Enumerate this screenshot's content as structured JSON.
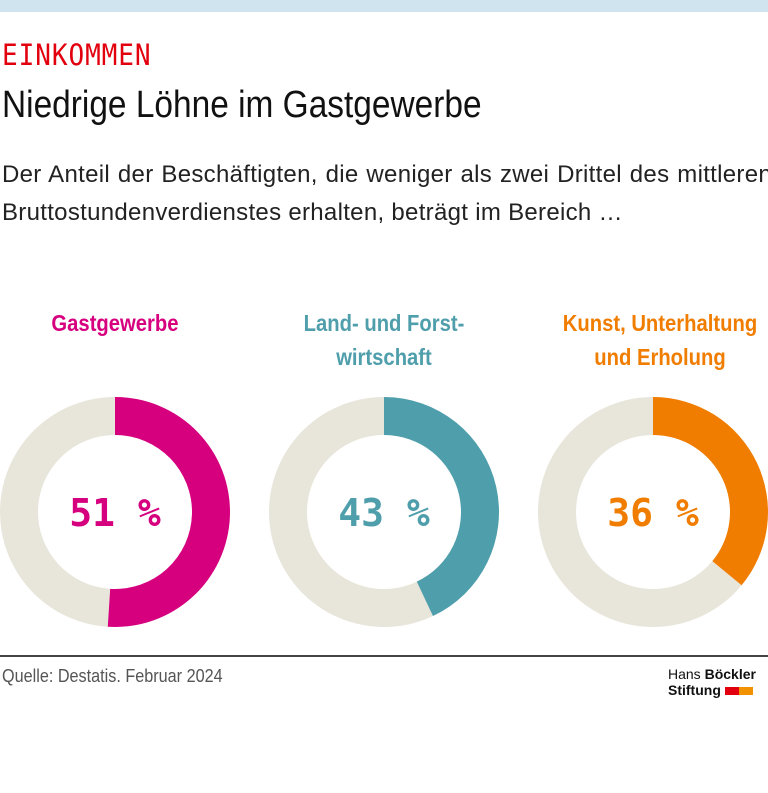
{
  "kicker": "EINKOMMEN",
  "title": "Niedrige Löhne im Gastgewerbe",
  "subtitle": "Der Anteil der Beschäftigten, die weniger als zwei Drittel des mittleren Bruttostundenverdienstes erhalten, beträgt im Bereich …",
  "source": "Quelle: Destatis. Februar 2024",
  "logo": {
    "line1a": "Hans",
    "line1b": "Böckler",
    "line2": "Stiftung",
    "colors": [
      "#e2000f",
      "#f39200"
    ]
  },
  "chart_data": [
    {
      "type": "pie",
      "title": "Gastgewerbe",
      "value": 51,
      "label": "51 %",
      "color": "#d6007f",
      "rest_color": "#e8e5da"
    },
    {
      "type": "pie",
      "title": "Land- und Forst-\nwirtschaft",
      "value": 43,
      "label": "43 %",
      "color": "#4f9eab",
      "rest_color": "#e8e5da"
    },
    {
      "type": "pie",
      "title": "Kunst, Unterhaltung\nund Erholung",
      "value": 36,
      "label": "36 %",
      "color": "#f07d00",
      "rest_color": "#e8e5da"
    }
  ]
}
